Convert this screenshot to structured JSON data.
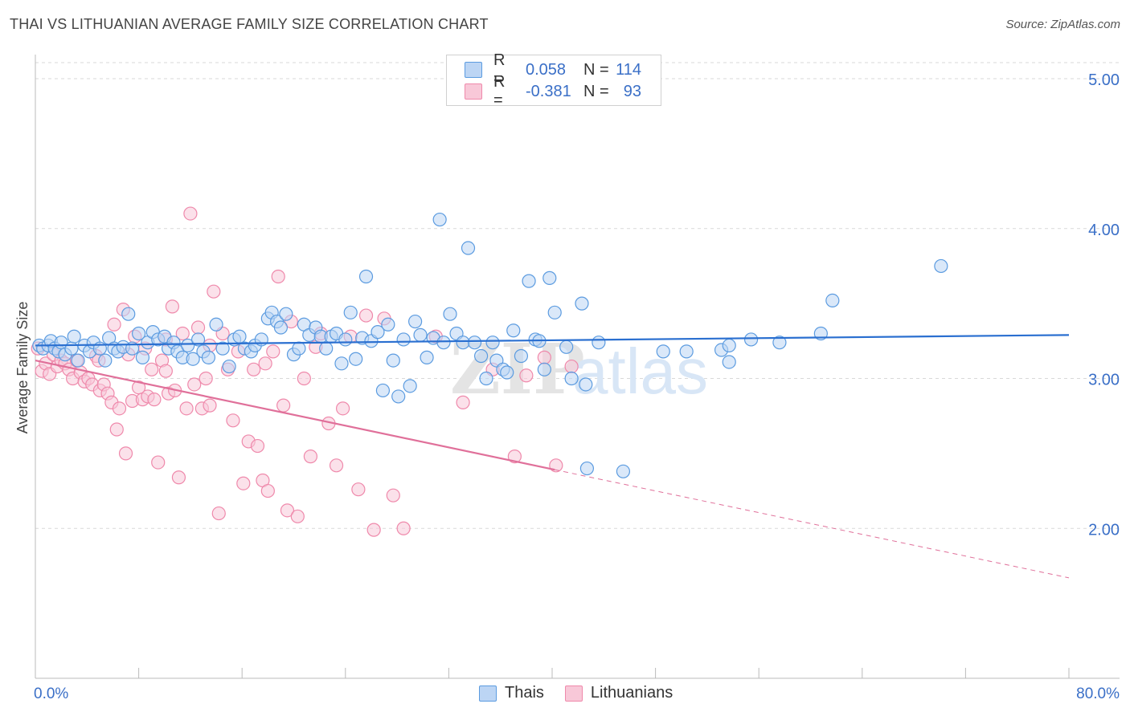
{
  "title": "THAI VS LITHUANIAN AVERAGE FAMILY SIZE CORRELATION CHART",
  "source": "Source: ZipAtlas.com",
  "colors": {
    "blue": "#5b9be0",
    "blue_fill": "#bcd5f4",
    "blue_line": "#2a6fd0",
    "pink": "#ef89ab",
    "pink_fill": "#f8c8d8",
    "pink_line": "#e0709a",
    "axis_text": "#3a6fc7",
    "grid": "#d9d9d9"
  },
  "legend": {
    "rows": [
      {
        "r_label": "R =",
        "r_value": "0.058",
        "n_label": "N =",
        "n_value": "114"
      },
      {
        "r_label": "R =",
        "r_value": "-0.381",
        "n_label": "N =",
        "n_value": "93"
      }
    ]
  },
  "bottom_legend": [
    "Thais",
    "Lithuanians"
  ],
  "watermark": {
    "zip": "ZIP",
    "atlas": "atlas"
  },
  "chart_data": {
    "type": "scatter",
    "title": "THAI VS LITHUANIAN AVERAGE FAMILY SIZE CORRELATION CHART",
    "xlabel": "",
    "ylabel": "Average Family Size",
    "xlim": [
      0,
      80
    ],
    "ylim": [
      1.0,
      5.15
    ],
    "x_tick_labels": [
      "0.0%",
      "80.0%"
    ],
    "y_ticks": [
      2.0,
      3.0,
      4.0,
      5.0
    ],
    "y_tick_labels": [
      "2.00",
      "3.00",
      "4.00",
      "5.00"
    ],
    "grid": true,
    "series": [
      {
        "name": "Thais",
        "r": 0.058,
        "n": 114,
        "trend": {
          "x": [
            0,
            80
          ],
          "y": [
            3.22,
            3.29
          ],
          "dashed_after": null
        },
        "points": [
          [
            0.3,
            3.22
          ],
          [
            0.6,
            3.2
          ],
          [
            1.0,
            3.22
          ],
          [
            1.2,
            3.25
          ],
          [
            1.5,
            3.2
          ],
          [
            1.8,
            3.18
          ],
          [
            2.0,
            3.24
          ],
          [
            2.3,
            3.16
          ],
          [
            2.8,
            3.2
          ],
          [
            3.0,
            3.28
          ],
          [
            3.3,
            3.12
          ],
          [
            3.8,
            3.22
          ],
          [
            4.2,
            3.18
          ],
          [
            4.5,
            3.24
          ],
          [
            5.0,
            3.2
          ],
          [
            5.4,
            3.12
          ],
          [
            5.7,
            3.27
          ],
          [
            6.1,
            3.2
          ],
          [
            6.4,
            3.18
          ],
          [
            6.8,
            3.21
          ],
          [
            7.2,
            3.43
          ],
          [
            7.5,
            3.2
          ],
          [
            8.0,
            3.3
          ],
          [
            8.3,
            3.14
          ],
          [
            8.7,
            3.24
          ],
          [
            9.1,
            3.31
          ],
          [
            9.5,
            3.26
          ],
          [
            10.0,
            3.28
          ],
          [
            10.3,
            3.2
          ],
          [
            10.7,
            3.24
          ],
          [
            11.0,
            3.18
          ],
          [
            11.4,
            3.14
          ],
          [
            11.8,
            3.22
          ],
          [
            12.2,
            3.13
          ],
          [
            12.6,
            3.26
          ],
          [
            13.0,
            3.18
          ],
          [
            13.4,
            3.14
          ],
          [
            14.0,
            3.36
          ],
          [
            14.5,
            3.2
          ],
          [
            15.0,
            3.08
          ],
          [
            15.4,
            3.26
          ],
          [
            15.8,
            3.28
          ],
          [
            16.2,
            3.2
          ],
          [
            16.7,
            3.18
          ],
          [
            17.0,
            3.22
          ],
          [
            17.5,
            3.26
          ],
          [
            18.0,
            3.4
          ],
          [
            18.3,
            3.44
          ],
          [
            18.7,
            3.38
          ],
          [
            19.0,
            3.34
          ],
          [
            19.4,
            3.43
          ],
          [
            20.0,
            3.16
          ],
          [
            20.4,
            3.2
          ],
          [
            20.8,
            3.36
          ],
          [
            21.2,
            3.29
          ],
          [
            21.7,
            3.34
          ],
          [
            22.1,
            3.28
          ],
          [
            22.5,
            3.2
          ],
          [
            22.9,
            3.28
          ],
          [
            23.3,
            3.3
          ],
          [
            23.7,
            3.1
          ],
          [
            24.0,
            3.26
          ],
          [
            24.4,
            3.44
          ],
          [
            24.8,
            3.13
          ],
          [
            25.3,
            3.27
          ],
          [
            25.6,
            3.68
          ],
          [
            26.0,
            3.25
          ],
          [
            26.5,
            3.31
          ],
          [
            26.9,
            2.92
          ],
          [
            27.3,
            3.36
          ],
          [
            27.7,
            3.12
          ],
          [
            28.1,
            2.88
          ],
          [
            28.5,
            3.26
          ],
          [
            29.0,
            2.95
          ],
          [
            29.4,
            3.38
          ],
          [
            29.8,
            3.29
          ],
          [
            30.3,
            3.14
          ],
          [
            30.8,
            3.27
          ],
          [
            31.3,
            4.06
          ],
          [
            31.6,
            3.24
          ],
          [
            32.1,
            3.43
          ],
          [
            32.6,
            3.3
          ],
          [
            33.1,
            3.24
          ],
          [
            33.5,
            3.87
          ],
          [
            34.0,
            3.24
          ],
          [
            34.5,
            3.15
          ],
          [
            34.9,
            3.0
          ],
          [
            35.4,
            3.24
          ],
          [
            35.7,
            3.12
          ],
          [
            36.2,
            3.06
          ],
          [
            36.5,
            3.04
          ],
          [
            37.0,
            3.32
          ],
          [
            37.6,
            3.15
          ],
          [
            38.2,
            3.65
          ],
          [
            38.7,
            3.26
          ],
          [
            39.0,
            3.25
          ],
          [
            39.4,
            3.06
          ],
          [
            39.8,
            3.67
          ],
          [
            40.2,
            3.44
          ],
          [
            41.1,
            3.21
          ],
          [
            41.5,
            3.0
          ],
          [
            42.3,
            3.5
          ],
          [
            42.6,
            2.96
          ],
          [
            42.7,
            2.4
          ],
          [
            43.6,
            3.24
          ],
          [
            45.5,
            2.38
          ],
          [
            48.6,
            3.18
          ],
          [
            50.4,
            3.18
          ],
          [
            53.1,
            3.19
          ],
          [
            53.7,
            3.22
          ],
          [
            55.4,
            3.26
          ],
          [
            53.7,
            3.11
          ],
          [
            57.6,
            3.24
          ],
          [
            60.8,
            3.3
          ],
          [
            61.7,
            3.52
          ],
          [
            70.1,
            3.75
          ]
        ]
      },
      {
        "name": "Lithuanians",
        "r": -0.381,
        "n": 93,
        "trend": {
          "x": [
            0,
            80
          ],
          "y": [
            3.12,
            1.67
          ],
          "solid_until_x": 40.2
        },
        "points": [
          [
            0.2,
            3.2
          ],
          [
            0.5,
            3.05
          ],
          [
            0.8,
            3.1
          ],
          [
            1.1,
            3.03
          ],
          [
            1.4,
            3.16
          ],
          [
            1.7,
            3.08
          ],
          [
            2.0,
            3.12
          ],
          [
            2.3,
            3.1
          ],
          [
            2.6,
            3.06
          ],
          [
            2.9,
            3.0
          ],
          [
            3.2,
            3.12
          ],
          [
            3.5,
            3.04
          ],
          [
            3.8,
            2.98
          ],
          [
            4.1,
            3.0
          ],
          [
            4.4,
            2.96
          ],
          [
            4.7,
            3.15
          ],
          [
            5.0,
            2.92
          ],
          [
            5.3,
            2.96
          ],
          [
            5.6,
            2.9
          ],
          [
            5.9,
            2.84
          ],
          [
            6.1,
            3.36
          ],
          [
            6.3,
            2.66
          ],
          [
            6.5,
            2.8
          ],
          [
            6.8,
            3.46
          ],
          [
            7.0,
            2.5
          ],
          [
            7.2,
            3.16
          ],
          [
            7.5,
            2.85
          ],
          [
            7.7,
            3.28
          ],
          [
            8.0,
            2.94
          ],
          [
            8.3,
            2.86
          ],
          [
            8.5,
            3.2
          ],
          [
            8.7,
            2.88
          ],
          [
            9.0,
            3.06
          ],
          [
            9.2,
            2.86
          ],
          [
            9.5,
            2.44
          ],
          [
            9.8,
            3.12
          ],
          [
            10.1,
            3.05
          ],
          [
            10.3,
            2.9
          ],
          [
            10.6,
            3.48
          ],
          [
            10.8,
            2.92
          ],
          [
            11.1,
            2.34
          ],
          [
            11.4,
            3.3
          ],
          [
            11.7,
            2.8
          ],
          [
            12.0,
            4.1
          ],
          [
            12.3,
            2.96
          ],
          [
            12.6,
            3.34
          ],
          [
            12.9,
            2.8
          ],
          [
            13.2,
            3.0
          ],
          [
            13.5,
            2.82
          ],
          [
            13.8,
            3.58
          ],
          [
            14.2,
            2.1
          ],
          [
            14.5,
            3.3
          ],
          [
            14.9,
            3.06
          ],
          [
            15.3,
            2.72
          ],
          [
            15.7,
            3.18
          ],
          [
            16.1,
            2.3
          ],
          [
            16.5,
            2.58
          ],
          [
            16.9,
            3.06
          ],
          [
            17.2,
            2.55
          ],
          [
            17.6,
            2.32
          ],
          [
            18.0,
            2.25
          ],
          [
            18.4,
            3.18
          ],
          [
            18.8,
            3.68
          ],
          [
            19.2,
            2.82
          ],
          [
            19.5,
            2.12
          ],
          [
            19.8,
            3.38
          ],
          [
            20.3,
            2.08
          ],
          [
            20.8,
            3.0
          ],
          [
            21.3,
            2.48
          ],
          [
            21.7,
            3.21
          ],
          [
            22.1,
            3.3
          ],
          [
            22.7,
            2.7
          ],
          [
            23.3,
            2.42
          ],
          [
            23.8,
            2.8
          ],
          [
            24.4,
            3.28
          ],
          [
            25.0,
            2.26
          ],
          [
            25.6,
            3.42
          ],
          [
            26.2,
            1.99
          ],
          [
            27.0,
            3.4
          ],
          [
            27.7,
            2.22
          ],
          [
            28.5,
            2.0
          ],
          [
            31.0,
            3.28
          ],
          [
            33.1,
            2.84
          ],
          [
            35.4,
            3.06
          ],
          [
            37.1,
            2.48
          ],
          [
            38.0,
            3.02
          ],
          [
            39.4,
            3.14
          ],
          [
            40.3,
            2.42
          ],
          [
            41.5,
            3.08
          ],
          [
            4.9,
            3.12
          ],
          [
            10.1,
            3.26
          ],
          [
            13.5,
            3.22
          ],
          [
            17.8,
            3.1
          ]
        ]
      }
    ]
  }
}
